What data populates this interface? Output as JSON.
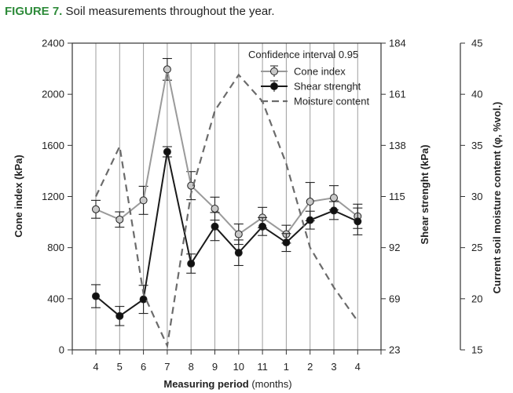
{
  "figure": {
    "label": "FIGURE 7.",
    "caption": "Soil measurements throughout the year."
  },
  "chart_data": {
    "type": "line",
    "title": "Soil measurements throughout the year.",
    "xlabel_bold": "Measuring period",
    "xlabel_unit": "(months)",
    "x_ticks": [
      "4",
      "5",
      "6",
      "7",
      "8",
      "9",
      "10",
      "11",
      "1",
      "2",
      "3",
      "4"
    ],
    "y_left": {
      "label": "Cone index (kPa)",
      "ticks": [
        0,
        400,
        800,
        1200,
        1600,
        2000,
        2400
      ],
      "ylim": [
        0,
        2400
      ]
    },
    "y_right1": {
      "label": "Shear strenght (kPa)",
      "ticks": [
        23,
        69,
        92,
        115,
        138,
        161,
        184
      ],
      "ylim": [
        23,
        184
      ]
    },
    "y_right2": {
      "label": "Current soil moisture content (φ, %vol.)",
      "ticks": [
        15,
        20,
        25,
        30,
        35,
        40,
        45
      ],
      "ylim": [
        15,
        45
      ]
    },
    "legend": {
      "title": "Confidence interval 0.95",
      "position": "top-right",
      "entries": [
        "Cone index",
        "Shear strenght",
        "Moisture content"
      ]
    },
    "series": [
      {
        "name": "Cone index",
        "axis": "left",
        "color": "#9a9a9a",
        "marker_fill": "#c8c8c8",
        "values": [
          1100,
          1020,
          1170,
          2195,
          1285,
          1105,
          905,
          1035,
          905,
          1160,
          1190,
          1045
        ],
        "err": [
          70,
          60,
          110,
          85,
          110,
          90,
          80,
          80,
          70,
          150,
          95,
          95
        ]
      },
      {
        "name": "Shear strenght",
        "axis": "left",
        "color": "#1a1a1a",
        "marker_fill": "#111111",
        "values": [
          420,
          265,
          395,
          1550,
          675,
          965,
          760,
          965,
          840,
          1015,
          1090,
          1005
        ],
        "err": [
          90,
          75,
          110,
          40,
          75,
          110,
          100,
          70,
          70,
          70,
          70,
          105
        ]
      },
      {
        "name": "Moisture content",
        "axis": "right2",
        "color": "#6b6b6b",
        "values": [
          30.0,
          34.9,
          20.5,
          15.4,
          30.3,
          38.4,
          41.9,
          39.3,
          33.2,
          25.0,
          21.1,
          17.8
        ]
      }
    ],
    "grid": "vertical"
  }
}
